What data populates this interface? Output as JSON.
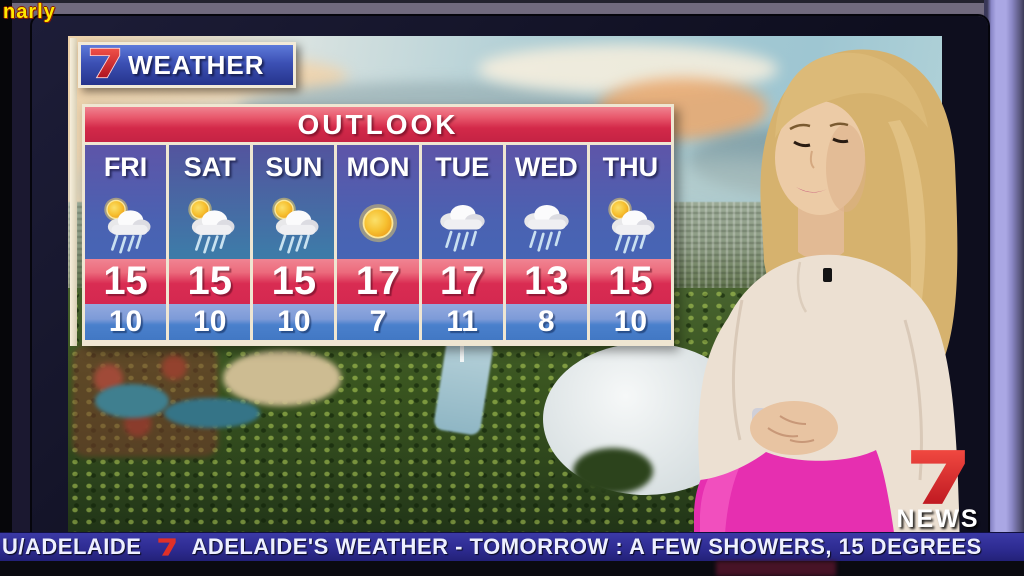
{
  "watermark": {
    "text": "narly"
  },
  "tv_screen": {
    "brand": {
      "network": "7",
      "label": "WEATHER"
    },
    "forecast": {
      "title": "OUTLOOK",
      "days": [
        {
          "day": "FRI",
          "high": "15",
          "low": "10",
          "icon": "sun-cloud-rain"
        },
        {
          "day": "SAT",
          "high": "15",
          "low": "10",
          "icon": "sun-cloud-rain"
        },
        {
          "day": "SUN",
          "high": "15",
          "low": "10",
          "icon": "sun-cloud-rain"
        },
        {
          "day": "MON",
          "high": "17",
          "low": "7",
          "icon": "sunny"
        },
        {
          "day": "TUE",
          "high": "17",
          "low": "11",
          "icon": "cloud-rain"
        },
        {
          "day": "WED",
          "high": "13",
          "low": "8",
          "icon": "cloud-rain"
        },
        {
          "day": "THU",
          "high": "15",
          "low": "10",
          "icon": "sun-cloud-rain"
        }
      ]
    },
    "background_scene": "aerial view of Adelaide parklands, river and stadium at sunrise"
  },
  "news_logo": {
    "network": "7",
    "label": "NEWS"
  },
  "ticker": {
    "location": "U/ADELAIDE",
    "separator_icon": "seven-logo",
    "message": "ADELAIDE'S WEATHER - TOMORROW : A FEW SHOWERS, 15 DEGREES"
  },
  "colors": {
    "outlook_red": "#d32949",
    "high_band_red": "#d92c52",
    "low_band_blue": "#4a80cc",
    "day_panel_blue": "#4a62b2",
    "brand_banner_blue": "#3c50b4",
    "ticker_blue": "#2e2c92",
    "seven_red": "#e03028",
    "skirt_pink": "#e62fb0",
    "wall_purple": "#8a87c8",
    "watermark_yellow": "#ffe800"
  },
  "chart_data": {
    "type": "table",
    "title": "OUTLOOK",
    "categories": [
      "FRI",
      "SAT",
      "SUN",
      "MON",
      "TUE",
      "WED",
      "THU"
    ],
    "series": [
      {
        "name": "High (degrees C)",
        "values": [
          15,
          15,
          15,
          17,
          17,
          13,
          15
        ]
      },
      {
        "name": "Low (degrees C)",
        "values": [
          10,
          10,
          10,
          7,
          11,
          8,
          10
        ]
      },
      {
        "name": "Condition",
        "values": [
          "sun-cloud-rain",
          "sun-cloud-rain",
          "sun-cloud-rain",
          "sunny",
          "cloud-rain",
          "cloud-rain",
          "sun-cloud-rain"
        ]
      }
    ]
  }
}
